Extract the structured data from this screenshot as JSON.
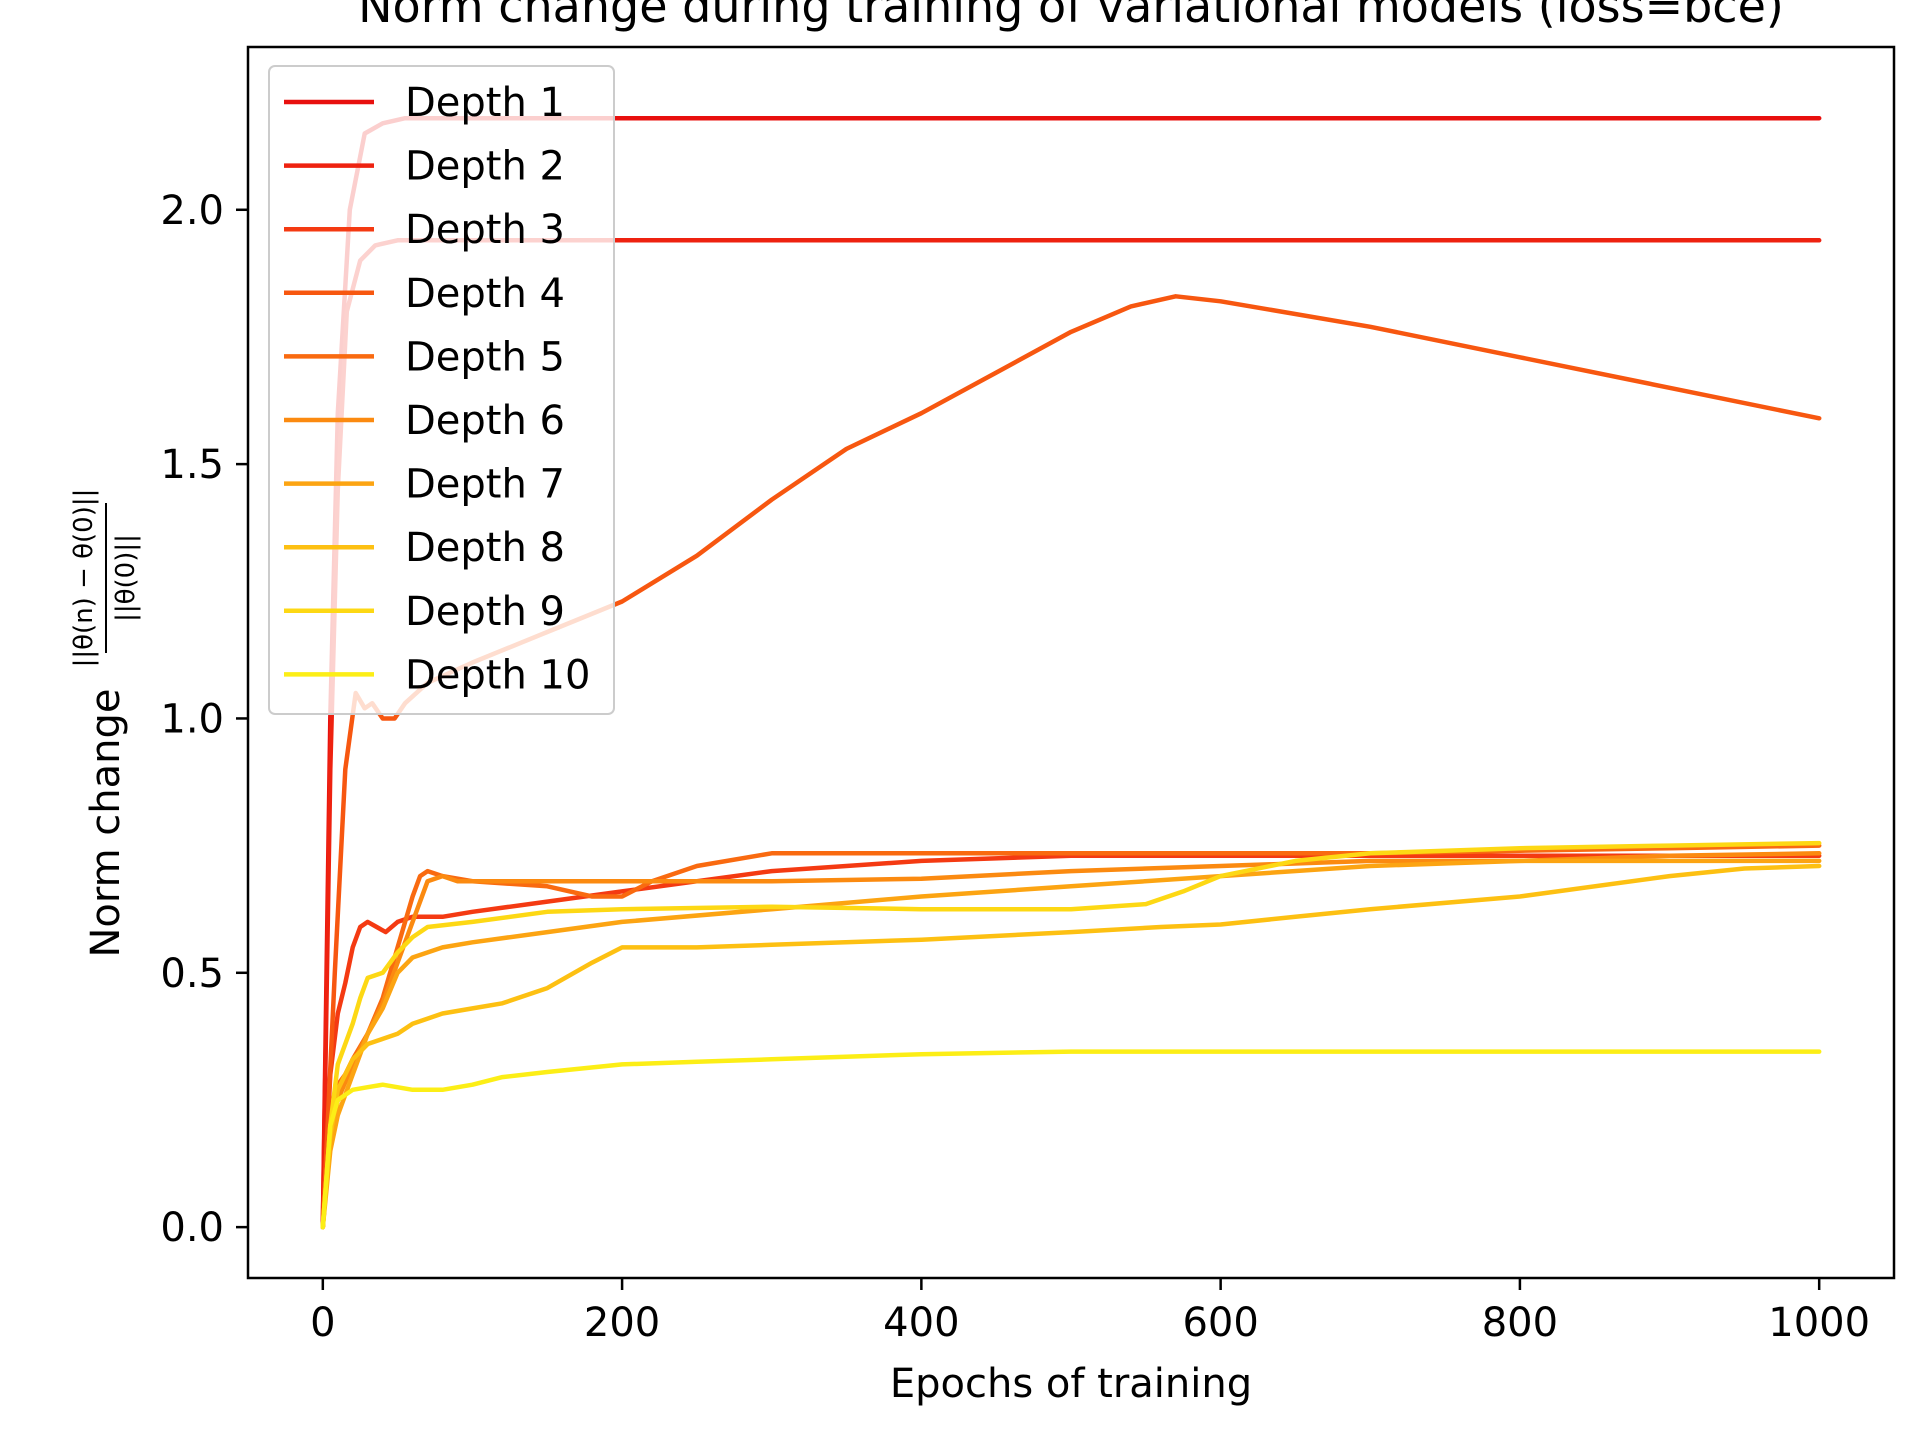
{
  "chart_data": {
    "type": "line",
    "title": "Norm change during training of variational models (loss=bce)",
    "xlabel": "Epochs of training",
    "ylabel": "Norm change",
    "ylabel_fraction": {
      "numerator": "||θ(n) − θ(0)||",
      "denominator": "||θ(0)||"
    },
    "xlim": [
      -50,
      1050
    ],
    "ylim": [
      -0.1,
      2.32
    ],
    "xticks": [
      0,
      200,
      400,
      600,
      800,
      1000
    ],
    "yticks": [
      0.0,
      0.5,
      1.0,
      1.5,
      2.0
    ],
    "xtick_labels": [
      "0",
      "200",
      "400",
      "600",
      "800",
      "1000"
    ],
    "ytick_labels": [
      "0.0",
      "0.5",
      "1.0",
      "1.5",
      "2.0"
    ],
    "grid": false,
    "legend_position": "upper-left",
    "series": [
      {
        "name": "Depth 1",
        "color": "#e8100e",
        "points": [
          [
            0,
            0
          ],
          [
            5,
            1.0
          ],
          [
            10,
            1.6
          ],
          [
            18,
            2.0
          ],
          [
            28,
            2.15
          ],
          [
            40,
            2.17
          ],
          [
            55,
            2.18
          ],
          [
            70,
            2.18
          ],
          [
            100,
            2.18
          ],
          [
            200,
            2.18
          ],
          [
            400,
            2.18
          ],
          [
            600,
            2.18
          ],
          [
            800,
            2.18
          ],
          [
            1000,
            2.18
          ]
        ]
      },
      {
        "name": "Depth 2",
        "color": "#ee2210",
        "points": [
          [
            0,
            0
          ],
          [
            5,
            0.9
          ],
          [
            10,
            1.45
          ],
          [
            16,
            1.8
          ],
          [
            25,
            1.9
          ],
          [
            35,
            1.93
          ],
          [
            50,
            1.94
          ],
          [
            80,
            1.94
          ],
          [
            150,
            1.94
          ],
          [
            300,
            1.94
          ],
          [
            500,
            1.94
          ],
          [
            700,
            1.94
          ],
          [
            900,
            1.94
          ],
          [
            1000,
            1.94
          ]
        ]
      },
      {
        "name": "Depth 3",
        "color": "#f43a12",
        "points": [
          [
            0,
            0
          ],
          [
            5,
            0.3
          ],
          [
            10,
            0.42
          ],
          [
            15,
            0.48
          ],
          [
            20,
            0.55
          ],
          [
            25,
            0.59
          ],
          [
            30,
            0.6
          ],
          [
            36,
            0.59
          ],
          [
            42,
            0.58
          ],
          [
            50,
            0.6
          ],
          [
            60,
            0.61
          ],
          [
            80,
            0.61
          ],
          [
            100,
            0.62
          ],
          [
            150,
            0.64
          ],
          [
            200,
            0.66
          ],
          [
            300,
            0.7
          ],
          [
            400,
            0.72
          ],
          [
            500,
            0.73
          ],
          [
            600,
            0.73
          ],
          [
            700,
            0.73
          ],
          [
            800,
            0.73
          ],
          [
            900,
            0.73
          ],
          [
            1000,
            0.73
          ]
        ]
      },
      {
        "name": "Depth 4",
        "color": "#f75710",
        "points": [
          [
            0,
            0
          ],
          [
            8,
            0.5
          ],
          [
            15,
            0.9
          ],
          [
            22,
            1.05
          ],
          [
            28,
            1.02
          ],
          [
            33,
            1.03
          ],
          [
            40,
            1.0
          ],
          [
            48,
            1.0
          ],
          [
            55,
            1.03
          ],
          [
            70,
            1.07
          ],
          [
            100,
            1.11
          ],
          [
            150,
            1.17
          ],
          [
            200,
            1.23
          ],
          [
            250,
            1.32
          ],
          [
            300,
            1.43
          ],
          [
            350,
            1.53
          ],
          [
            400,
            1.6
          ],
          [
            450,
            1.68
          ],
          [
            500,
            1.76
          ],
          [
            540,
            1.81
          ],
          [
            570,
            1.83
          ],
          [
            600,
            1.82
          ],
          [
            700,
            1.77
          ],
          [
            800,
            1.71
          ],
          [
            900,
            1.65
          ],
          [
            1000,
            1.59
          ]
        ]
      },
      {
        "name": "Depth 5",
        "color": "#f96a10",
        "points": [
          [
            0,
            0
          ],
          [
            5,
            0.2
          ],
          [
            10,
            0.28
          ],
          [
            15,
            0.3
          ],
          [
            20,
            0.33
          ],
          [
            30,
            0.38
          ],
          [
            40,
            0.45
          ],
          [
            50,
            0.55
          ],
          [
            60,
            0.65
          ],
          [
            65,
            0.69
          ],
          [
            70,
            0.7
          ],
          [
            80,
            0.69
          ],
          [
            100,
            0.68
          ],
          [
            150,
            0.67
          ],
          [
            180,
            0.65
          ],
          [
            200,
            0.65
          ],
          [
            220,
            0.68
          ],
          [
            250,
            0.71
          ],
          [
            300,
            0.735
          ],
          [
            400,
            0.735
          ],
          [
            500,
            0.735
          ],
          [
            600,
            0.735
          ],
          [
            700,
            0.735
          ],
          [
            800,
            0.74
          ],
          [
            900,
            0.745
          ],
          [
            1000,
            0.75
          ]
        ]
      },
      {
        "name": "Depth 6",
        "color": "#fb8a10",
        "points": [
          [
            0,
            0
          ],
          [
            5,
            0.18
          ],
          [
            10,
            0.25
          ],
          [
            20,
            0.32
          ],
          [
            30,
            0.38
          ],
          [
            40,
            0.44
          ],
          [
            50,
            0.52
          ],
          [
            60,
            0.6
          ],
          [
            70,
            0.68
          ],
          [
            80,
            0.69
          ],
          [
            90,
            0.68
          ],
          [
            100,
            0.68
          ],
          [
            150,
            0.68
          ],
          [
            200,
            0.68
          ],
          [
            300,
            0.68
          ],
          [
            400,
            0.685
          ],
          [
            500,
            0.7
          ],
          [
            600,
            0.71
          ],
          [
            700,
            0.72
          ],
          [
            800,
            0.72
          ],
          [
            900,
            0.73
          ],
          [
            1000,
            0.735
          ]
        ]
      },
      {
        "name": "Depth 7",
        "color": "#fca412",
        "points": [
          [
            0,
            0
          ],
          [
            5,
            0.15
          ],
          [
            10,
            0.22
          ],
          [
            20,
            0.3
          ],
          [
            30,
            0.38
          ],
          [
            40,
            0.43
          ],
          [
            50,
            0.5
          ],
          [
            60,
            0.53
          ],
          [
            80,
            0.55
          ],
          [
            100,
            0.56
          ],
          [
            150,
            0.58
          ],
          [
            200,
            0.6
          ],
          [
            300,
            0.625
          ],
          [
            400,
            0.65
          ],
          [
            500,
            0.67
          ],
          [
            600,
            0.69
          ],
          [
            700,
            0.71
          ],
          [
            800,
            0.72
          ],
          [
            900,
            0.72
          ],
          [
            1000,
            0.72
          ]
        ]
      },
      {
        "name": "Depth 8",
        "color": "#fdc012",
        "points": [
          [
            0,
            0
          ],
          [
            5,
            0.18
          ],
          [
            10,
            0.27
          ],
          [
            20,
            0.33
          ],
          [
            30,
            0.36
          ],
          [
            40,
            0.37
          ],
          [
            50,
            0.38
          ],
          [
            60,
            0.4
          ],
          [
            70,
            0.41
          ],
          [
            80,
            0.42
          ],
          [
            100,
            0.43
          ],
          [
            120,
            0.44
          ],
          [
            150,
            0.47
          ],
          [
            180,
            0.52
          ],
          [
            200,
            0.55
          ],
          [
            250,
            0.55
          ],
          [
            300,
            0.555
          ],
          [
            400,
            0.565
          ],
          [
            500,
            0.58
          ],
          [
            560,
            0.59
          ],
          [
            600,
            0.595
          ],
          [
            650,
            0.61
          ],
          [
            700,
            0.625
          ],
          [
            800,
            0.65
          ],
          [
            900,
            0.69
          ],
          [
            950,
            0.705
          ],
          [
            1000,
            0.71
          ]
        ]
      },
      {
        "name": "Depth 9",
        "color": "#fdd814",
        "points": [
          [
            0,
            0
          ],
          [
            5,
            0.2
          ],
          [
            10,
            0.32
          ],
          [
            20,
            0.4
          ],
          [
            25,
            0.45
          ],
          [
            30,
            0.49
          ],
          [
            40,
            0.5
          ],
          [
            50,
            0.54
          ],
          [
            60,
            0.57
          ],
          [
            70,
            0.59
          ],
          [
            100,
            0.6
          ],
          [
            150,
            0.62
          ],
          [
            200,
            0.625
          ],
          [
            300,
            0.63
          ],
          [
            400,
            0.625
          ],
          [
            500,
            0.625
          ],
          [
            550,
            0.635
          ],
          [
            575,
            0.66
          ],
          [
            600,
            0.69
          ],
          [
            650,
            0.72
          ],
          [
            700,
            0.735
          ],
          [
            800,
            0.745
          ],
          [
            900,
            0.75
          ],
          [
            1000,
            0.755
          ]
        ]
      },
      {
        "name": "Depth 10",
        "color": "#fcee16",
        "points": [
          [
            0,
            0
          ],
          [
            5,
            0.2
          ],
          [
            10,
            0.25
          ],
          [
            20,
            0.27
          ],
          [
            30,
            0.275
          ],
          [
            40,
            0.28
          ],
          [
            60,
            0.27
          ],
          [
            80,
            0.27
          ],
          [
            100,
            0.28
          ],
          [
            120,
            0.295
          ],
          [
            150,
            0.305
          ],
          [
            200,
            0.32
          ],
          [
            250,
            0.325
          ],
          [
            300,
            0.33
          ],
          [
            400,
            0.34
          ],
          [
            500,
            0.345
          ],
          [
            600,
            0.345
          ],
          [
            700,
            0.345
          ],
          [
            800,
            0.345
          ],
          [
            900,
            0.345
          ],
          [
            1000,
            0.345
          ]
        ]
      }
    ]
  }
}
